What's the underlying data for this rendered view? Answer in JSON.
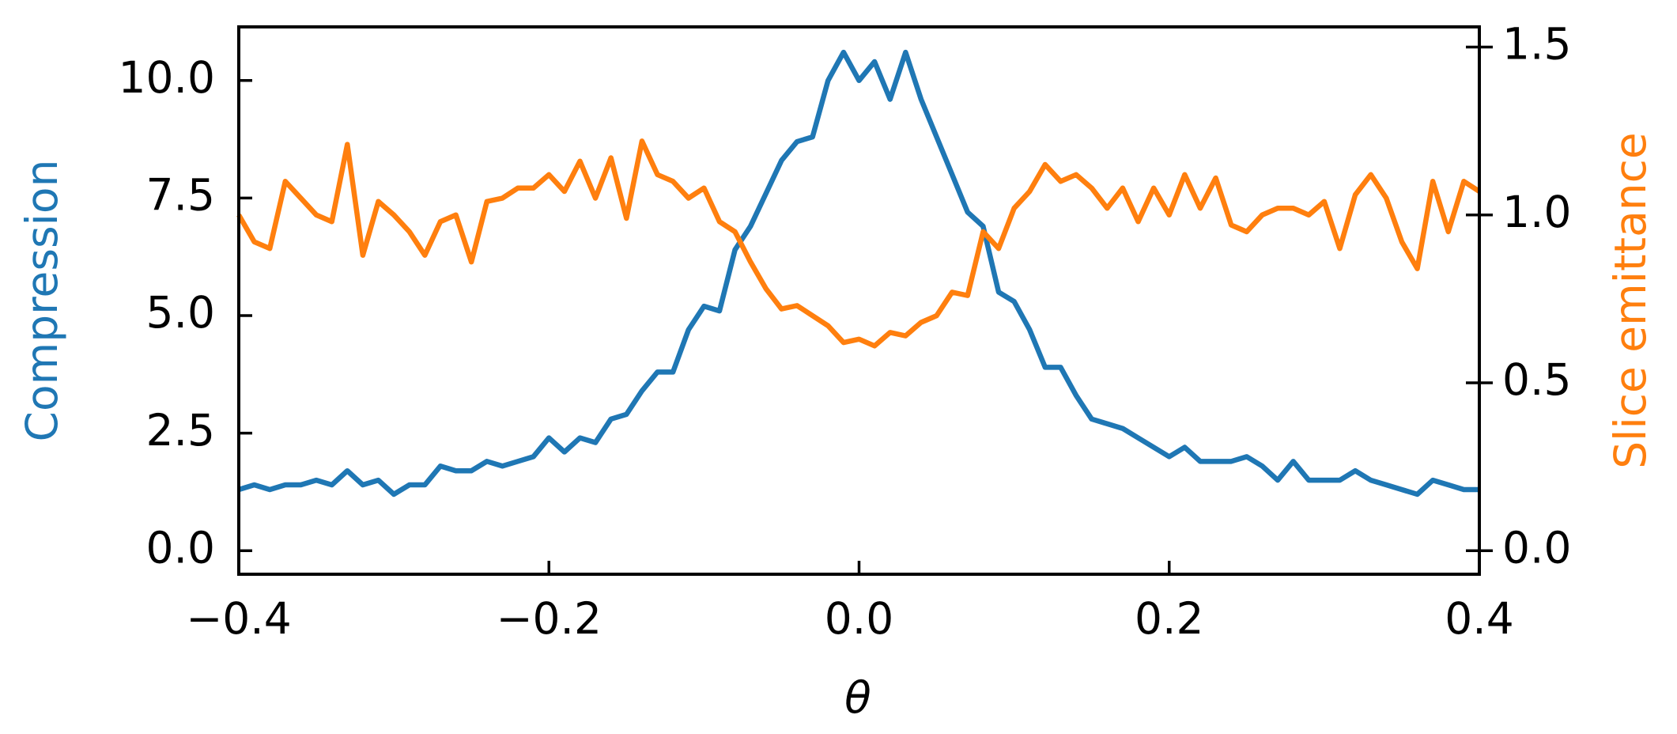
{
  "chart_data": {
    "type": "line",
    "xlabel": "θ",
    "ylabel": "Compression",
    "y2label": "Slice emittance",
    "x": [
      -0.4,
      -0.39,
      -0.38,
      -0.37,
      -0.36,
      -0.35,
      -0.34,
      -0.33,
      -0.32,
      -0.31,
      -0.3,
      -0.29,
      -0.28,
      -0.27,
      -0.26,
      -0.25,
      -0.24,
      -0.23,
      -0.22,
      -0.21,
      -0.2,
      -0.19,
      -0.18,
      -0.17,
      -0.16,
      -0.15,
      -0.14,
      -0.13,
      -0.12,
      -0.11,
      -0.1,
      -0.09,
      -0.08,
      -0.07,
      -0.06,
      -0.05,
      -0.04,
      -0.03,
      -0.02,
      -0.01,
      0,
      0.01,
      0.02,
      0.03,
      0.04,
      0.05,
      0.06,
      0.07,
      0.08,
      0.09,
      0.1,
      0.11,
      0.12,
      0.13,
      0.14,
      0.15,
      0.16,
      0.17,
      0.18,
      0.19,
      0.2,
      0.21,
      0.22,
      0.23,
      0.24,
      0.25,
      0.26,
      0.27,
      0.28,
      0.29,
      0.3,
      0.31,
      0.32,
      0.33,
      0.34,
      0.35,
      0.36,
      0.37,
      0.38,
      0.39,
      0.4
    ],
    "series": [
      {
        "name": "Compression",
        "color": "#1f77b4",
        "axis": "y",
        "values": [
          1.3,
          1.4,
          1.3,
          1.4,
          1.4,
          1.5,
          1.4,
          1.7,
          1.4,
          1.5,
          1.2,
          1.4,
          1.4,
          1.8,
          1.7,
          1.7,
          1.9,
          1.8,
          1.9,
          2.0,
          2.4,
          2.1,
          2.4,
          2.3,
          2.8,
          2.9,
          3.4,
          3.8,
          3.8,
          4.7,
          5.2,
          5.1,
          6.4,
          6.9,
          7.6,
          8.3,
          8.7,
          8.8,
          10.0,
          10.6,
          10.0,
          10.4,
          9.6,
          10.6,
          9.6,
          8.8,
          8.0,
          7.2,
          6.9,
          5.5,
          5.3,
          4.7,
          3.9,
          3.9,
          3.3,
          2.8,
          2.7,
          2.6,
          2.4,
          2.2,
          2.0,
          2.2,
          1.9,
          1.9,
          1.9,
          2.0,
          1.8,
          1.5,
          1.9,
          1.5,
          1.5,
          1.5,
          1.7,
          1.5,
          1.4,
          1.3,
          1.2,
          1.5,
          1.4,
          1.3,
          1.3
        ]
      },
      {
        "name": "Slice emittance",
        "color": "#ff7f0e",
        "axis": "y2",
        "values": [
          1.0,
          0.92,
          0.9,
          1.1,
          1.05,
          1.0,
          0.98,
          1.21,
          0.88,
          1.04,
          1.0,
          0.95,
          0.88,
          0.98,
          1.0,
          0.86,
          1.04,
          1.05,
          1.08,
          1.08,
          1.12,
          1.07,
          1.16,
          1.05,
          1.17,
          0.99,
          1.22,
          1.12,
          1.1,
          1.05,
          1.08,
          0.98,
          0.95,
          0.86,
          0.78,
          0.72,
          0.73,
          0.7,
          0.67,
          0.62,
          0.63,
          0.61,
          0.65,
          0.64,
          0.68,
          0.7,
          0.77,
          0.76,
          0.95,
          0.9,
          1.02,
          1.07,
          1.15,
          1.1,
          1.12,
          1.08,
          1.02,
          1.08,
          0.98,
          1.08,
          1.0,
          1.12,
          1.02,
          1.11,
          0.97,
          0.95,
          1.0,
          1.02,
          1.02,
          1.0,
          1.04,
          0.9,
          1.06,
          1.12,
          1.05,
          0.92,
          0.84,
          1.1,
          0.95,
          1.1,
          1.07
        ]
      }
    ],
    "xlim": [
      -0.4,
      0.4
    ],
    "xticks": [
      {
        "value": -0.4,
        "label": "−0.4"
      },
      {
        "value": -0.2,
        "label": "−0.2"
      },
      {
        "value": 0,
        "label": "0.0"
      },
      0.2,
      0.4
    ],
    "ylim": [
      -0.5,
      11.14
    ],
    "yticks": [
      {
        "value": 0,
        "label": "0.0"
      },
      2.5,
      {
        "value": 5,
        "label": "5.0"
      },
      7.5,
      {
        "value": 10,
        "label": "10.0"
      }
    ],
    "y2lim": [
      -0.07,
      1.56
    ],
    "y2ticks": [
      {
        "value": 0,
        "label": "0.0"
      },
      0.5,
      {
        "value": 1,
        "label": "1.0"
      },
      1.5
    ]
  }
}
